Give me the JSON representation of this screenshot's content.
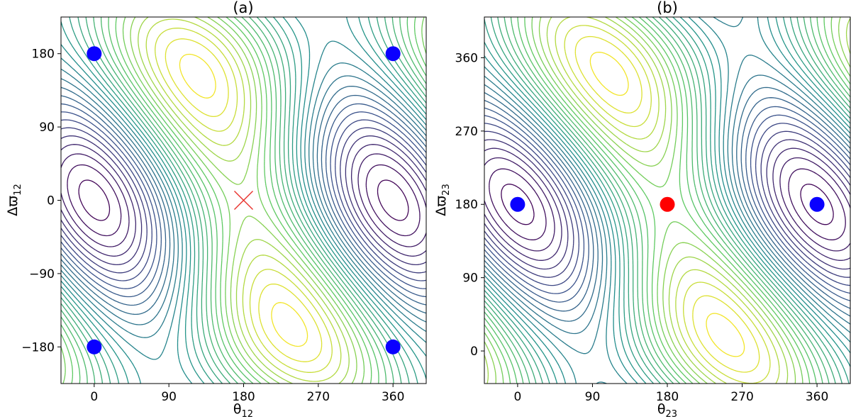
{
  "chart_data": [
    {
      "type": "contour",
      "title": "(a)",
      "xlabel": "θ",
      "xlabel_sub": "12",
      "ylabel": "Δϖ",
      "ylabel_sub": "12",
      "xlim": [
        -40,
        400
      ],
      "ylim": [
        -225,
        225
      ],
      "xticks": [
        0,
        90,
        180,
        270,
        360
      ],
      "xtick_labels": [
        "0",
        "90",
        "180",
        "270",
        "360"
      ],
      "yticks": [
        -180,
        -90,
        0,
        90,
        180
      ],
      "ytick_labels": [
        "−180",
        "−90",
        "0",
        "90",
        "180"
      ],
      "colormap": [
        "#440154",
        "#3b528b",
        "#21918c",
        "#5ec962",
        "#fde725"
      ],
      "levels": 30,
      "markers": [
        {
          "type": "circle",
          "color": "#0a00ff",
          "x": 0,
          "y": 180
        },
        {
          "type": "circle",
          "color": "#0a00ff",
          "x": 360,
          "y": 180
        },
        {
          "type": "circle",
          "color": "#0a00ff",
          "x": 0,
          "y": -180
        },
        {
          "type": "circle",
          "color": "#0a00ff",
          "x": 360,
          "y": -180
        },
        {
          "type": "cross",
          "color": "#e8302a",
          "x": 180,
          "y": 0
        }
      ]
    },
    {
      "type": "contour",
      "title": "(b)",
      "xlabel": "θ",
      "xlabel_sub": "23",
      "ylabel": "Δϖ",
      "ylabel_sub": "23",
      "xlim": [
        -40,
        400
      ],
      "ylim": [
        -40,
        410
      ],
      "xticks": [
        0,
        90,
        180,
        270,
        360
      ],
      "xtick_labels": [
        "0",
        "90",
        "180",
        "270",
        "360"
      ],
      "yticks": [
        0,
        90,
        180,
        270,
        360
      ],
      "ytick_labels": [
        "0",
        "90",
        "180",
        "270",
        "360"
      ],
      "colormap": [
        "#440154",
        "#3b528b",
        "#21918c",
        "#5ec962",
        "#fde725"
      ],
      "levels": 30,
      "markers": [
        {
          "type": "circle",
          "color": "#0a00ff",
          "x": 0,
          "y": 180
        },
        {
          "type": "circle",
          "color": "#0a00ff",
          "x": 360,
          "y": 180
        },
        {
          "type": "circle",
          "color": "#ff0000",
          "x": 180,
          "y": 180
        }
      ]
    }
  ]
}
